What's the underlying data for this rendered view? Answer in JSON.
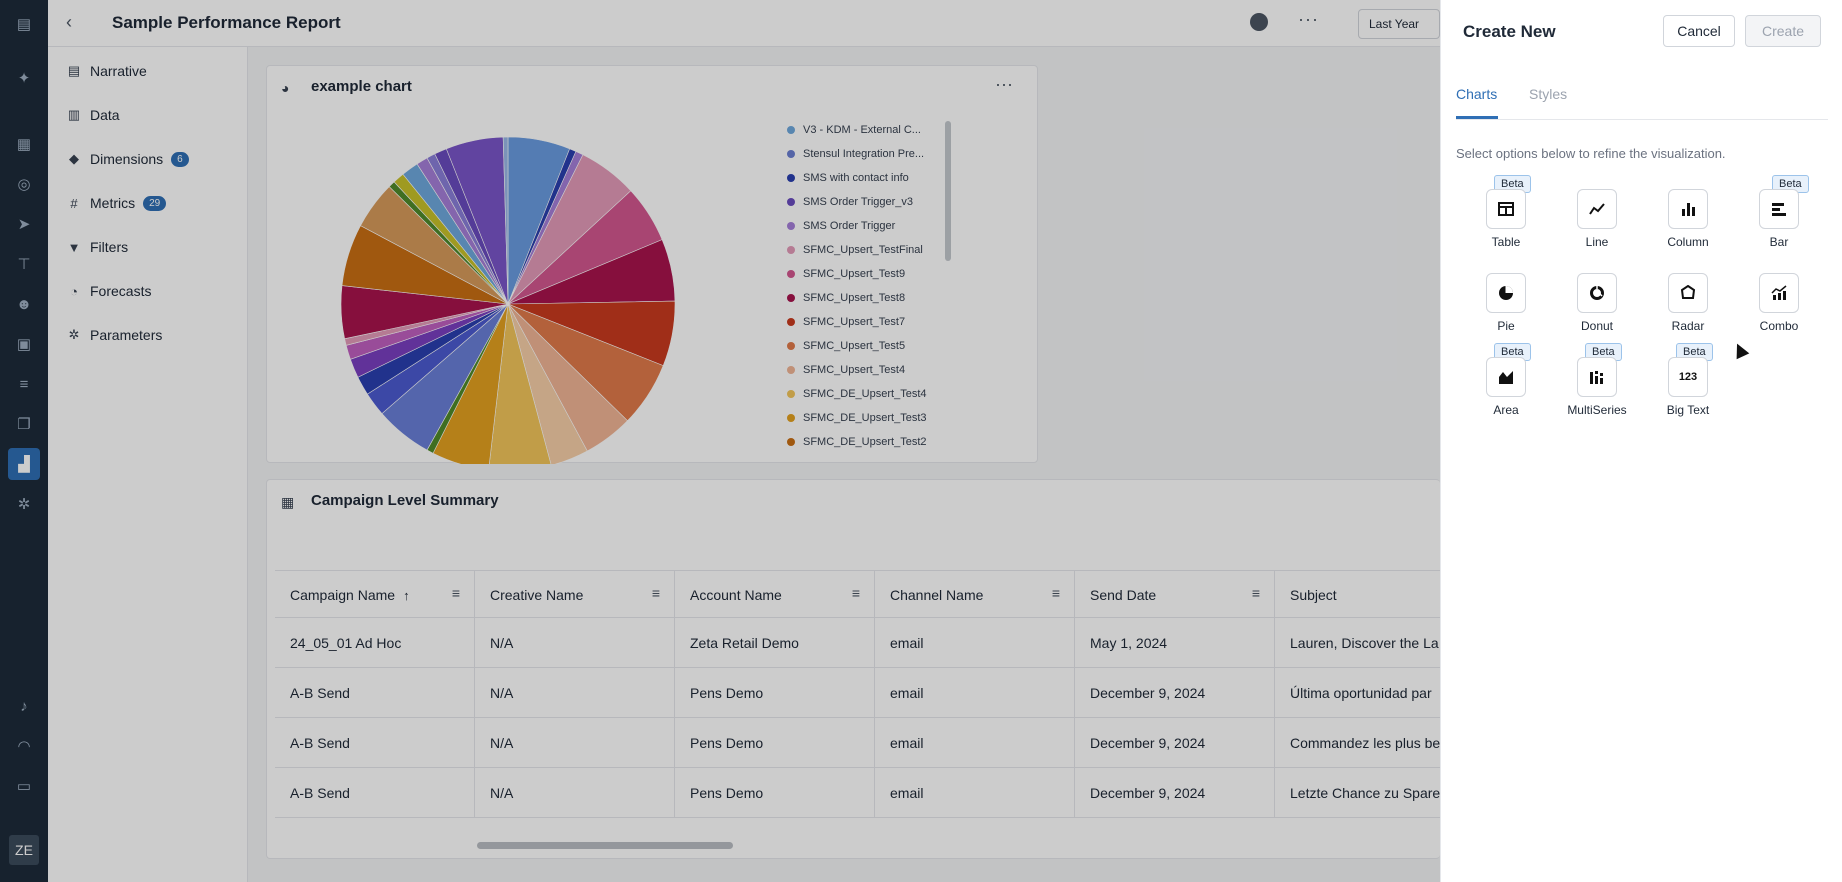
{
  "header": {
    "title": "Sample Performance Report",
    "date_range": "Last Year"
  },
  "rail": {
    "avatar": "ZE",
    "icons": [
      "menu-icon",
      "sparkle-icon",
      "grid-icon",
      "target-icon",
      "send-icon",
      "org-icon",
      "users-icon",
      "calendar-icon",
      "flow-icon",
      "layers-icon",
      "analytics-icon",
      "settings-icon",
      "bell-icon",
      "signal-icon",
      "book-icon"
    ]
  },
  "sidebar": {
    "items": [
      {
        "label": "Narrative",
        "icon": "narrative-icon",
        "glyph": "▤"
      },
      {
        "label": "Data",
        "icon": "data-icon",
        "glyph": "▥"
      },
      {
        "label": "Dimensions",
        "icon": "cube-icon",
        "glyph": "◆",
        "badge": "6"
      },
      {
        "label": "Metrics",
        "icon": "hash-icon",
        "glyph": "#",
        "badge": "29"
      },
      {
        "label": "Filters",
        "icon": "filter-icon",
        "glyph": "▼"
      },
      {
        "label": "Forecasts",
        "icon": "forecast-icon",
        "glyph": "◔"
      },
      {
        "label": "Parameters",
        "icon": "gear-icon",
        "glyph": "✲"
      }
    ]
  },
  "chart_card": {
    "title": "example chart"
  },
  "chart_data": {
    "type": "pie",
    "title": "example chart",
    "legend_placement": "right",
    "legend": [
      {
        "name": "V3 - KDM - External C...",
        "color": "#6ea8dc"
      },
      {
        "name": "Stensul Integration Pre...",
        "color": "#6b7fd1"
      },
      {
        "name": "SMS with contact info",
        "color": "#2a3fb0"
      },
      {
        "name": "SMS Order Trigger_v3",
        "color": "#6a4bbf"
      },
      {
        "name": "SMS Order Trigger",
        "color": "#a57fd9"
      },
      {
        "name": "SFMC_Upsert_TestFinal",
        "color": "#e39ab8"
      },
      {
        "name": "SFMC_Upsert_Test9",
        "color": "#d2578f"
      },
      {
        "name": "SFMC_Upsert_Test8",
        "color": "#a8134d"
      },
      {
        "name": "SFMC_Upsert_Test7",
        "color": "#c93a1f"
      },
      {
        "name": "SFMC_Upsert_Test5",
        "color": "#e07a4a"
      },
      {
        "name": "SFMC_Upsert_Test4",
        "color": "#f0b495"
      },
      {
        "name": "SFMC_DE_Upsert_Test4",
        "color": "#f2c55a"
      },
      {
        "name": "SFMC_DE_Upsert_Test3",
        "color": "#e3a020"
      },
      {
        "name": "SFMC_DE_Upsert_Test2",
        "color": "#c96f13"
      }
    ],
    "slices": [
      {
        "value": 6.5,
        "color": "#6a9be0"
      },
      {
        "value": 0.7,
        "color": "#2a3fb0"
      },
      {
        "value": 0.8,
        "color": "#a57fd9"
      },
      {
        "value": 6.2,
        "color": "#e39ab8"
      },
      {
        "value": 6.0,
        "color": "#d2578f"
      },
      {
        "value": 6.5,
        "color": "#a8134d"
      },
      {
        "value": 6.8,
        "color": "#c93a1f"
      },
      {
        "value": 6.8,
        "color": "#e07a4a"
      },
      {
        "value": 5.2,
        "color": "#f0b495"
      },
      {
        "value": 4.0,
        "color": "#f7cfa8"
      },
      {
        "value": 6.5,
        "color": "#f2c55a"
      },
      {
        "value": 6.0,
        "color": "#e3a020"
      },
      {
        "value": 0.7,
        "color": "#4f8a2a"
      },
      {
        "value": 6.0,
        "color": "#6a7fd8"
      },
      {
        "value": 2.5,
        "color": "#4c5bd0"
      },
      {
        "value": 2.0,
        "color": "#2a3fb0"
      },
      {
        "value": 2.0,
        "color": "#7a3fc0"
      },
      {
        "value": 1.5,
        "color": "#c05fc0"
      },
      {
        "value": 0.7,
        "color": "#e39ab8"
      },
      {
        "value": 5.5,
        "color": "#a8134d"
      },
      {
        "value": 6.5,
        "color": "#c96f13"
      },
      {
        "value": 5.0,
        "color": "#d69a5a"
      },
      {
        "value": 0.7,
        "color": "#4f8a2a"
      },
      {
        "value": 1.2,
        "color": "#c7c12a"
      },
      {
        "value": 1.8,
        "color": "#6ea8dc"
      },
      {
        "value": 1.2,
        "color": "#a57fd9"
      },
      {
        "value": 0.9,
        "color": "#8a7fd9"
      },
      {
        "value": 1.3,
        "color": "#6a4bbf"
      },
      {
        "value": 6.0,
        "color": "#7a55c8"
      },
      {
        "value": 0.5,
        "color": "#9ab8e8"
      }
    ]
  },
  "table_card": {
    "title": "Campaign Level Summary",
    "columns": [
      "Campaign Name",
      "Creative Name",
      "Account Name",
      "Channel Name",
      "Send Date",
      "Subject"
    ],
    "rows": [
      [
        "24_05_01 Ad Hoc",
        "N/A",
        "Zeta Retail Demo",
        "email",
        "May 1, 2024",
        "Lauren, Discover the La"
      ],
      [
        "A-B Send",
        "N/A",
        "Pens Demo",
        "email",
        "December 9, 2024",
        "Última oportunidad par"
      ],
      [
        "A-B Send",
        "N/A",
        "Pens Demo",
        "email",
        "December 9, 2024",
        "Commandez les plus be"
      ],
      [
        "A-B Send",
        "N/A",
        "Pens Demo",
        "email",
        "December 9, 2024",
        "Letzte Chance zu Spare"
      ]
    ]
  },
  "drawer": {
    "title": "Create New",
    "cancel": "Cancel",
    "create": "Create",
    "tabs": [
      "Charts",
      "Styles"
    ],
    "hint": "Select options below to refine the visualization.",
    "options": [
      {
        "label": "Table",
        "icon": "table-icon",
        "beta": "Beta"
      },
      {
        "label": "Line",
        "icon": "line-chart-icon"
      },
      {
        "label": "Column",
        "icon": "column-chart-icon"
      },
      {
        "label": "Bar",
        "icon": "bar-chart-icon",
        "beta": "Beta"
      },
      {
        "label": "Pie",
        "icon": "pie-chart-icon"
      },
      {
        "label": "Donut",
        "icon": "donut-chart-icon"
      },
      {
        "label": "Radar",
        "icon": "radar-chart-icon"
      },
      {
        "label": "Combo",
        "icon": "combo-chart-icon"
      },
      {
        "label": "Area",
        "icon": "area-chart-icon",
        "beta": "Beta"
      },
      {
        "label": "MultiSeries",
        "icon": "multiseries-chart-icon",
        "beta": "Beta"
      },
      {
        "label": "Big Text",
        "icon": "big-text-icon",
        "beta": "Beta",
        "glyph": "123"
      }
    ]
  }
}
